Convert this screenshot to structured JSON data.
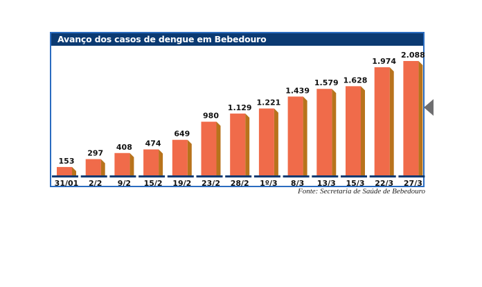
{
  "chart_data": {
    "type": "bar",
    "title": "Avanço dos casos de dengue em Bebedouro",
    "categories": [
      "31/01",
      "2/2",
      "9/2",
      "15/2",
      "19/2",
      "23/2",
      "28/2",
      "1º/3",
      "8/3",
      "13/3",
      "15/3",
      "22/3",
      "27/3"
    ],
    "values": [
      153,
      297,
      408,
      474,
      649,
      980,
      1129,
      1221,
      1439,
      1579,
      1628,
      1974,
      2088
    ],
    "value_labels": [
      "153",
      "297",
      "408",
      "474",
      "649",
      "980",
      "1.129",
      "1.221",
      "1.439",
      "1.579",
      "1.628",
      "1.974",
      "2.088"
    ],
    "source": "Fonte: Secretaria de Saúde de Bebedouro",
    "ylim": [
      0,
      2088
    ],
    "grid": false,
    "colors": {
      "bar_front": "#f06b4a",
      "bar_side": "#b8731c",
      "baseline": "#0b3a72",
      "title_bg": "#0b3a72",
      "frame": "#2a6cc0"
    }
  }
}
